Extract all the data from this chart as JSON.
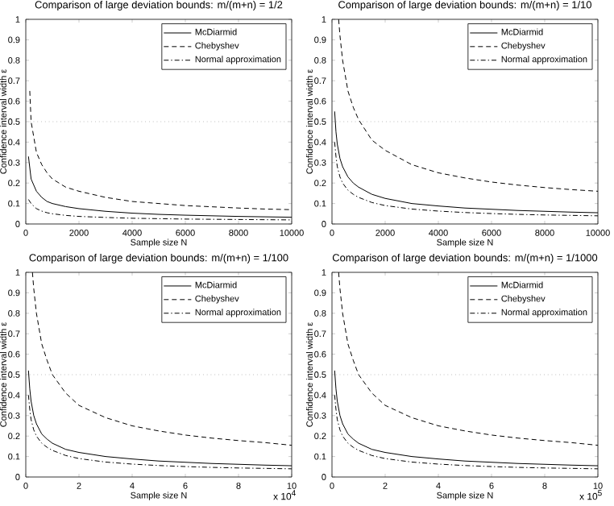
{
  "chart_data": [
    {
      "type": "line",
      "title": "Comparison of large deviation bounds: m/(m+n) = 1/2",
      "xlabel": "Sample size N",
      "ylabel": "Confidence interval width ε",
      "xlim": [
        0,
        10000
      ],
      "ylim": [
        0,
        1
      ],
      "xticks": [
        0,
        2000,
        4000,
        6000,
        8000,
        10000
      ],
      "yticks": [
        0,
        0.1,
        0.2,
        0.3,
        0.4,
        0.5,
        0.6,
        0.7,
        0.8,
        0.9,
        1
      ],
      "legend": "top right",
      "marker": "none",
      "ref_lines": [
        {
          "axis": "y",
          "value": 0.5,
          "color": "#999999",
          "line_style": "dotted"
        }
      ],
      "series": [
        {
          "name": "McDiarmid",
          "color": "#000000",
          "line_style": "solid",
          "x": [
            100,
            200,
            400,
            600,
            800,
            1000,
            1500,
            2000,
            3000,
            4000,
            5000,
            6000,
            7000,
            8000,
            9000,
            10000
          ],
          "values": [
            0.33,
            0.22,
            0.16,
            0.13,
            0.11,
            0.1,
            0.085,
            0.075,
            0.062,
            0.053,
            0.047,
            0.043,
            0.04,
            0.037,
            0.035,
            0.033
          ]
        },
        {
          "name": "Chebyshev",
          "color": "#000000",
          "line_style": "dashed",
          "x": [
            150,
            200,
            400,
            600,
            800,
            1000,
            1500,
            2000,
            3000,
            4000,
            5000,
            6000,
            7000,
            8000,
            9000,
            10000
          ],
          "values": [
            0.65,
            0.5,
            0.35,
            0.29,
            0.25,
            0.22,
            0.18,
            0.16,
            0.13,
            0.11,
            0.1,
            0.09,
            0.084,
            0.078,
            0.073,
            0.07
          ]
        },
        {
          "name": "Normal approximation",
          "color": "#000000",
          "line_style": "dashdot",
          "x": [
            100,
            200,
            400,
            600,
            800,
            1000,
            1500,
            2000,
            3000,
            4000,
            5000,
            6000,
            7000,
            8000,
            9000,
            10000
          ],
          "values": [
            0.12,
            0.1,
            0.075,
            0.063,
            0.055,
            0.05,
            0.042,
            0.037,
            0.032,
            0.028,
            0.026,
            0.024,
            0.023,
            0.022,
            0.021,
            0.02
          ]
        }
      ]
    },
    {
      "type": "line",
      "title": "Comparison of large deviation bounds: m/(m+n) = 1/10",
      "xlabel": "Sample size N",
      "ylabel": "Confidence interval width ε",
      "xlim": [
        0,
        10000
      ],
      "ylim": [
        0,
        1
      ],
      "xticks": [
        0,
        2000,
        4000,
        6000,
        8000,
        10000
      ],
      "yticks": [
        0,
        0.1,
        0.2,
        0.3,
        0.4,
        0.5,
        0.6,
        0.7,
        0.8,
        0.9,
        1
      ],
      "legend": "top right",
      "marker": "none",
      "ref_lines": [
        {
          "axis": "y",
          "value": 0.5,
          "color": "#999999",
          "line_style": "dotted"
        }
      ],
      "series": [
        {
          "name": "McDiarmid",
          "color": "#000000",
          "line_style": "solid",
          "x": [
            100,
            150,
            200,
            300,
            400,
            600,
            800,
            1000,
            1500,
            2000,
            3000,
            4000,
            5000,
            6000,
            7000,
            8000,
            9000,
            10000
          ],
          "values": [
            0.55,
            0.45,
            0.39,
            0.32,
            0.28,
            0.23,
            0.2,
            0.18,
            0.145,
            0.125,
            0.1,
            0.088,
            0.078,
            0.072,
            0.066,
            0.062,
            0.058,
            0.055
          ]
        },
        {
          "name": "Chebyshev",
          "color": "#000000",
          "line_style": "dashed",
          "x": [
            250,
            300,
            400,
            600,
            800,
            1000,
            1500,
            2000,
            3000,
            4000,
            5000,
            6000,
            7000,
            8000,
            9000,
            10000
          ],
          "values": [
            1.0,
            0.92,
            0.8,
            0.65,
            0.57,
            0.51,
            0.41,
            0.36,
            0.29,
            0.25,
            0.225,
            0.205,
            0.19,
            0.178,
            0.168,
            0.16
          ]
        },
        {
          "name": "Normal approximation",
          "color": "#000000",
          "line_style": "dashdot",
          "x": [
            100,
            150,
            200,
            300,
            400,
            600,
            800,
            1000,
            1500,
            2000,
            3000,
            4000,
            5000,
            6000,
            7000,
            8000,
            9000,
            10000
          ],
          "values": [
            0.4,
            0.33,
            0.28,
            0.23,
            0.2,
            0.165,
            0.145,
            0.13,
            0.105,
            0.09,
            0.073,
            0.063,
            0.056,
            0.051,
            0.047,
            0.044,
            0.042,
            0.04
          ]
        }
      ]
    },
    {
      "type": "line",
      "title": "Comparison of large deviation bounds: m/(m+n) = 1/100",
      "xlabel": "Sample size N",
      "ylabel": "Confidence interval width ε",
      "xlim": [
        0,
        10
      ],
      "ylim": [
        0,
        1
      ],
      "xticks": [
        0,
        2,
        4,
        6,
        8,
        10
      ],
      "yticks": [
        0,
        0.1,
        0.2,
        0.3,
        0.4,
        0.5,
        0.6,
        0.7,
        0.8,
        0.9,
        1
      ],
      "legend": "top right",
      "marker": "none",
      "annotations": [
        "x 10$^{4}$"
      ],
      "ref_lines": [
        {
          "axis": "y",
          "value": 0.5,
          "color": "#999999",
          "line_style": "dotted"
        }
      ],
      "series": [
        {
          "name": "McDiarmid",
          "color": "#000000",
          "line_style": "solid",
          "x": [
            0.1,
            0.15,
            0.2,
            0.3,
            0.4,
            0.6,
            0.8,
            1,
            1.5,
            2,
            3,
            4,
            5,
            6,
            7,
            8,
            9,
            10
          ],
          "values": [
            0.52,
            0.43,
            0.37,
            0.3,
            0.26,
            0.21,
            0.185,
            0.165,
            0.135,
            0.12,
            0.1,
            0.088,
            0.078,
            0.072,
            0.066,
            0.062,
            0.058,
            0.055
          ]
        },
        {
          "name": "Chebyshev",
          "color": "#000000",
          "line_style": "dashed",
          "x": [
            0.25,
            0.3,
            0.4,
            0.6,
            0.8,
            1,
            1.5,
            2,
            3,
            4,
            5,
            6,
            7,
            8,
            9,
            10
          ],
          "values": [
            1.0,
            0.92,
            0.8,
            0.65,
            0.57,
            0.5,
            0.41,
            0.35,
            0.29,
            0.25,
            0.225,
            0.205,
            0.19,
            0.178,
            0.168,
            0.155
          ]
        },
        {
          "name": "Normal approximation",
          "color": "#000000",
          "line_style": "dashdot",
          "x": [
            0.1,
            0.15,
            0.2,
            0.3,
            0.4,
            0.6,
            0.8,
            1,
            1.5,
            2,
            3,
            4,
            5,
            6,
            7,
            8,
            9,
            10
          ],
          "values": [
            0.4,
            0.33,
            0.28,
            0.23,
            0.2,
            0.165,
            0.145,
            0.13,
            0.105,
            0.09,
            0.073,
            0.063,
            0.056,
            0.051,
            0.047,
            0.044,
            0.042,
            0.04
          ]
        }
      ]
    },
    {
      "type": "line",
      "title": "Comparison of large deviation bounds: m/(m+n) = 1/1000",
      "xlabel": "Sample size N",
      "ylabel": "Confidence interval width ε",
      "xlim": [
        0,
        10
      ],
      "ylim": [
        0,
        1
      ],
      "xticks": [
        0,
        2,
        4,
        6,
        8,
        10
      ],
      "yticks": [
        0,
        0.1,
        0.2,
        0.3,
        0.4,
        0.5,
        0.6,
        0.7,
        0.8,
        0.9,
        1
      ],
      "legend": "top right",
      "marker": "none",
      "annotations": [
        "x 10$^{5}$"
      ],
      "ref_lines": [
        {
          "axis": "y",
          "value": 0.5,
          "color": "#999999",
          "line_style": "dotted"
        }
      ],
      "series": [
        {
          "name": "McDiarmid",
          "color": "#000000",
          "line_style": "solid",
          "x": [
            0.1,
            0.15,
            0.2,
            0.3,
            0.4,
            0.6,
            0.8,
            1,
            1.5,
            2,
            3,
            4,
            5,
            6,
            7,
            8,
            9,
            10
          ],
          "values": [
            0.52,
            0.43,
            0.37,
            0.3,
            0.26,
            0.21,
            0.185,
            0.165,
            0.135,
            0.12,
            0.1,
            0.088,
            0.078,
            0.072,
            0.066,
            0.062,
            0.058,
            0.055
          ]
        },
        {
          "name": "Chebyshev",
          "color": "#000000",
          "line_style": "dashed",
          "x": [
            0.25,
            0.3,
            0.4,
            0.6,
            0.8,
            1,
            1.5,
            2,
            3,
            4,
            5,
            6,
            7,
            8,
            9,
            10
          ],
          "values": [
            1.0,
            0.92,
            0.8,
            0.65,
            0.57,
            0.5,
            0.41,
            0.35,
            0.29,
            0.25,
            0.225,
            0.205,
            0.19,
            0.178,
            0.168,
            0.155
          ]
        },
        {
          "name": "Normal approximation",
          "color": "#000000",
          "line_style": "dashdot",
          "x": [
            0.1,
            0.15,
            0.2,
            0.3,
            0.4,
            0.6,
            0.8,
            1,
            1.5,
            2,
            3,
            4,
            5,
            6,
            7,
            8,
            9,
            10
          ],
          "values": [
            0.4,
            0.33,
            0.28,
            0.23,
            0.2,
            0.165,
            0.145,
            0.13,
            0.105,
            0.09,
            0.073,
            0.063,
            0.056,
            0.051,
            0.047,
            0.044,
            0.042,
            0.04
          ]
        }
      ]
    }
  ]
}
